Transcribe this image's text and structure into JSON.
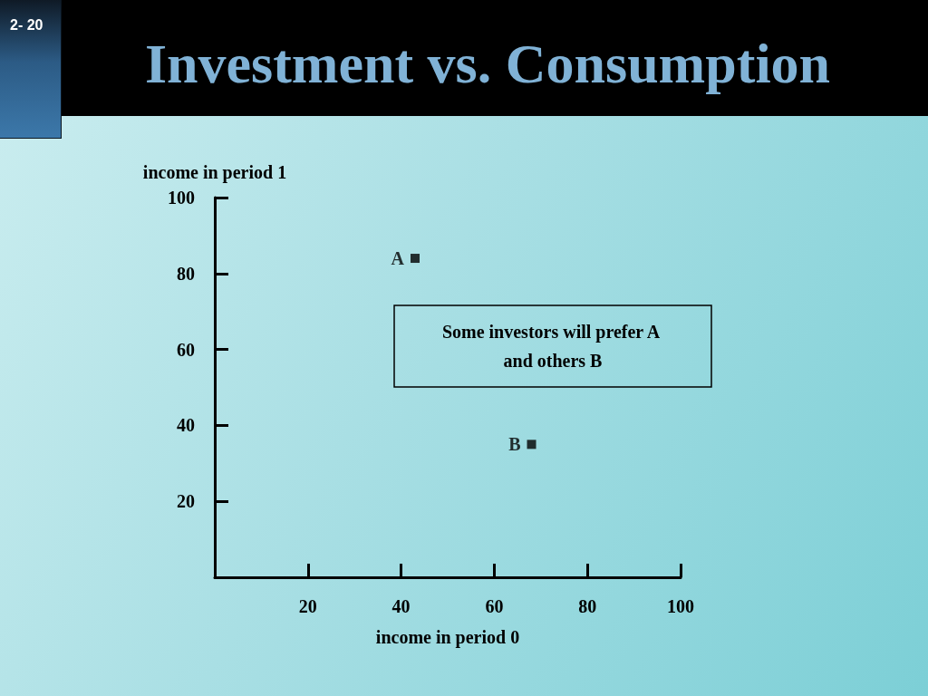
{
  "chart_data": {
    "type": "scatter",
    "title": "Investment vs. Consumption",
    "xlabel": "income in period 0",
    "ylabel": "income in period 1",
    "annotations": [
      "2- 20",
      "Some investors will prefer A and others B"
    ],
    "series": [
      {
        "name": "A",
        "color": "#000000",
        "x": [
          43
        ],
        "values": [
          84
        ]
      },
      {
        "name": "B",
        "color": "#000000",
        "x": [
          68
        ],
        "values": [
          35
        ]
      }
    ],
    "xlim": [
      0,
      100
    ],
    "ylim": [
      0,
      100
    ],
    "xticks": [
      20,
      40,
      60,
      80,
      100
    ],
    "yticks": [
      20,
      40,
      60,
      80,
      100
    ],
    "marker": "square"
  }
}
